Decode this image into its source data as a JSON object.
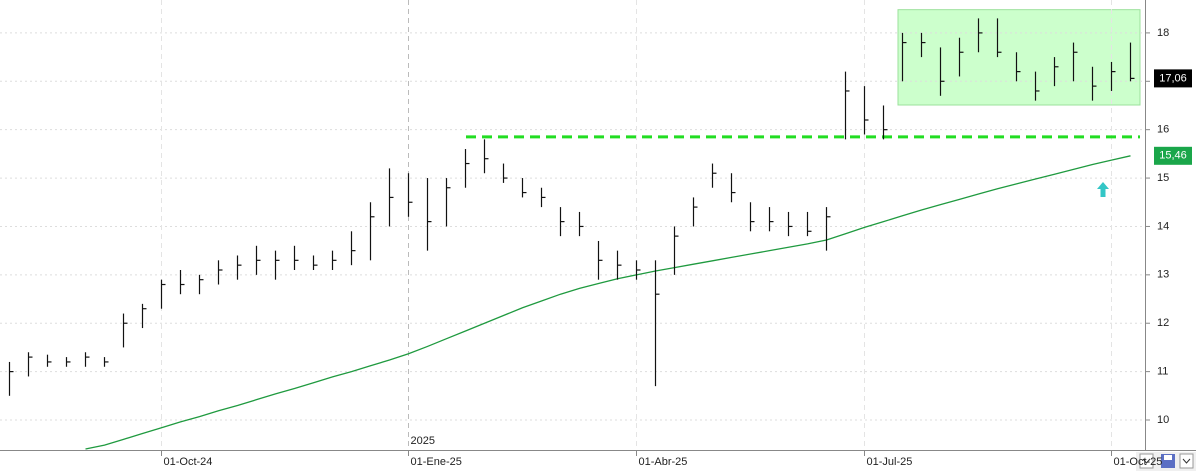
{
  "chart_data": {
    "type": "ohlc",
    "categories": [
      null,
      null,
      null,
      null,
      null,
      null,
      null,
      null,
      "01-Oct-24",
      null,
      null,
      null,
      null,
      null,
      null,
      null,
      null,
      null,
      null,
      null,
      null,
      "01-Ene-25",
      null,
      null,
      null,
      null,
      null,
      null,
      null,
      null,
      null,
      null,
      null,
      "01-Abr-25",
      null,
      null,
      null,
      null,
      null,
      null,
      null,
      null,
      null,
      null,
      null,
      "01-Jul-25",
      null,
      null,
      null,
      null,
      null,
      null,
      null,
      null,
      null,
      null,
      null,
      null,
      "01-Oct-25",
      null
    ],
    "year_label": "2025",
    "low": [
      10.5,
      10.9,
      11.1,
      11.1,
      11.1,
      11.1,
      11.5,
      11.9,
      12.3,
      12.6,
      12.6,
      12.8,
      12.9,
      13.0,
      12.9,
      13.1,
      13.1,
      13.1,
      13.2,
      13.3,
      14.0,
      14.2,
      13.5,
      14.0,
      14.8,
      15.1,
      14.9,
      14.6,
      14.4,
      13.8,
      13.8,
      12.9,
      12.9,
      12.9,
      10.7,
      13.0,
      14.0,
      14.8,
      14.5,
      13.9,
      13.9,
      13.8,
      13.8,
      13.5,
      15.8,
      15.9,
      15.8,
      17.0,
      17.5,
      16.7,
      17.1,
      17.6,
      17.5,
      17.0,
      16.6,
      16.9,
      17.0,
      16.6,
      16.8,
      17.0
    ],
    "high": [
      11.2,
      11.4,
      11.35,
      11.3,
      11.4,
      11.3,
      12.2,
      12.4,
      12.9,
      13.1,
      13.0,
      13.3,
      13.4,
      13.6,
      13.5,
      13.6,
      13.4,
      13.5,
      13.9,
      14.5,
      15.2,
      15.1,
      15.0,
      15.0,
      15.6,
      15.8,
      15.3,
      15.0,
      14.8,
      14.4,
      14.3,
      13.7,
      13.5,
      13.3,
      13.3,
      14.0,
      14.6,
      15.3,
      15.1,
      14.5,
      14.4,
      14.3,
      14.3,
      14.4,
      17.2,
      16.9,
      16.5,
      18.0,
      18.0,
      17.7,
      17.9,
      18.3,
      18.3,
      17.6,
      17.2,
      17.5,
      17.8,
      17.3,
      17.4,
      17.8
    ],
    "close": [
      11.0,
      11.3,
      11.2,
      11.2,
      11.3,
      11.2,
      12.0,
      12.3,
      12.8,
      12.8,
      12.9,
      13.1,
      13.2,
      13.3,
      13.3,
      13.3,
      13.2,
      13.3,
      13.5,
      14.2,
      14.6,
      14.5,
      14.1,
      14.8,
      15.3,
      15.4,
      15.0,
      14.7,
      14.6,
      14.1,
      14.0,
      13.3,
      13.2,
      13.1,
      12.6,
      13.8,
      14.4,
      15.1,
      14.7,
      14.1,
      14.1,
      14.0,
      13.9,
      14.2,
      16.8,
      16.2,
      16.0,
      17.8,
      17.8,
      17.0,
      17.6,
      18.0,
      17.6,
      17.2,
      16.8,
      17.3,
      17.6,
      16.9,
      17.2,
      17.06
    ],
    "bar_color": "#111111",
    "last_label": "17,06",
    "ma": [
      null,
      null,
      null,
      null,
      9.4,
      9.48,
      9.6,
      9.72,
      9.84,
      9.96,
      10.07,
      10.19,
      10.3,
      10.42,
      10.54,
      10.65,
      10.77,
      10.89,
      11.0,
      11.12,
      11.24,
      11.37,
      11.52,
      11.68,
      11.84,
      12.0,
      12.16,
      12.32,
      12.46,
      12.6,
      12.72,
      12.82,
      12.92,
      13.0,
      13.08,
      13.15,
      13.22,
      13.29,
      13.36,
      13.43,
      13.5,
      13.57,
      13.64,
      13.72,
      13.85,
      13.98,
      14.1,
      14.22,
      14.34,
      14.45,
      14.56,
      14.67,
      14.78,
      14.88,
      14.98,
      15.08,
      15.18,
      15.28,
      15.37,
      15.46
    ],
    "ma_color": "#1f9a3f",
    "ma_label": "15,46",
    "support_level": 15.85,
    "support_color": "#22dd22",
    "range_box": [
      16.51,
      18.48
    ],
    "range_color": "#ccffcc",
    "ylim": [
      9.38,
      18.68
    ],
    "yticks": [
      10,
      11,
      12,
      13,
      14,
      15,
      16,
      17,
      18
    ],
    "grid": true
  }
}
